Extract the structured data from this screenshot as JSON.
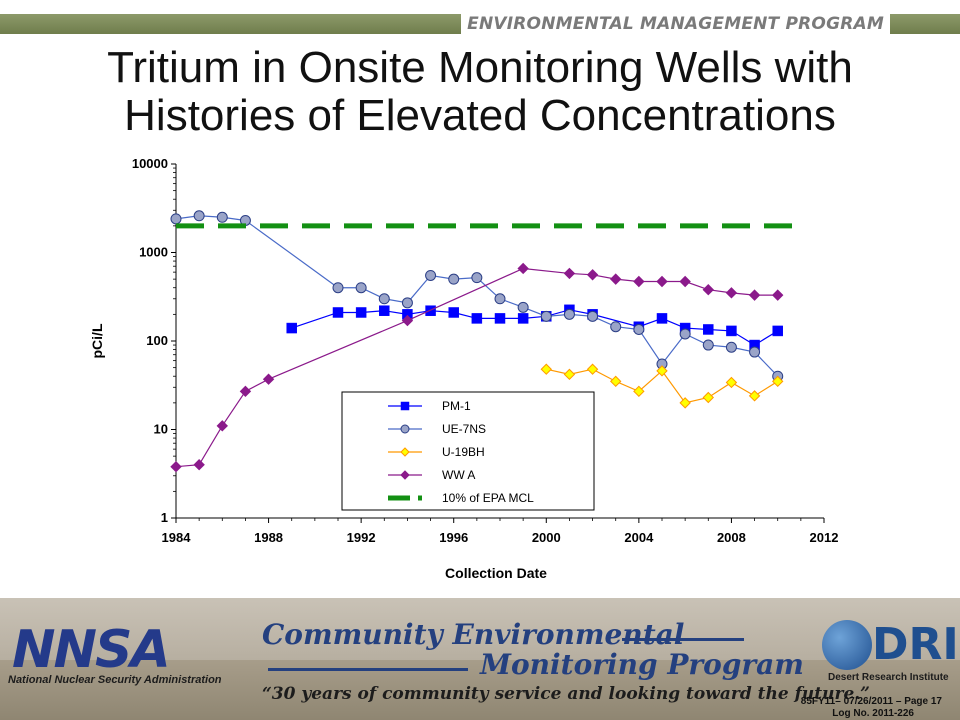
{
  "header": {
    "program": "ENVIRONMENTAL MANAGEMENT PROGRAM",
    "title_line1": "Tritium in Onsite Monitoring Wells with",
    "title_line2": "Histories of Elevated Concentrations"
  },
  "chart_data": {
    "type": "line",
    "xlabel": "Collection Date",
    "ylabel": "pCi/L",
    "y_scale": "log",
    "xlim": [
      1984,
      2012
    ],
    "ylim": [
      1,
      10000
    ],
    "x_ticks": [
      "1984",
      "1988",
      "1992",
      "1996",
      "2000",
      "2004",
      "2008",
      "2012"
    ],
    "y_ticks": [
      "1",
      "10",
      "100",
      "1000",
      "10000"
    ],
    "grid": false,
    "legend_position": "bottom-center",
    "series": [
      {
        "name": "PM-1",
        "color": "#0000ff",
        "marker": "square",
        "x": [
          1989,
          1991,
          1992,
          1993,
          1994,
          1995,
          1996,
          1997,
          1998,
          1999,
          2000,
          2001,
          2002,
          2004,
          2005,
          2006,
          2007,
          2008,
          2009,
          2010
        ],
        "y": [
          140,
          210,
          210,
          220,
          200,
          220,
          210,
          180,
          180,
          180,
          190,
          225,
          200,
          145,
          180,
          140,
          135,
          130,
          90,
          130
        ]
      },
      {
        "name": "UE-7NS",
        "color": "#4a6bc8",
        "marker": "circle",
        "x": [
          1984,
          1985,
          1986,
          1987,
          1991,
          1992,
          1993,
          1994,
          1995,
          1996,
          1997,
          1998,
          1999,
          2000,
          2001,
          2002,
          2003,
          2004,
          2005,
          2006,
          2007,
          2008,
          2009,
          2010
        ],
        "y": [
          2400,
          2600,
          2500,
          2300,
          400,
          400,
          300,
          270,
          550,
          500,
          520,
          300,
          240,
          190,
          200,
          190,
          145,
          135,
          55,
          120,
          90,
          85,
          75,
          40
        ]
      },
      {
        "name": "U-19BH",
        "color": "#ff9900",
        "marker": "diamond",
        "x": [
          2000,
          2001,
          2002,
          2003,
          2004,
          2005,
          2006,
          2007,
          2008,
          2009,
          2010
        ],
        "y": [
          48,
          42,
          48,
          35,
          27,
          46,
          20,
          23,
          34,
          24,
          35
        ]
      },
      {
        "name": "WW A",
        "color": "#8b1a8b",
        "marker": "diamond",
        "x": [
          1984,
          1985,
          1986,
          1987,
          1988,
          1994,
          1999,
          2001,
          2002,
          2003,
          2004,
          2005,
          2006,
          2007,
          2008,
          2009,
          2010
        ],
        "y": [
          3.8,
          4,
          11,
          27,
          37,
          170,
          660,
          580,
          560,
          500,
          470,
          470,
          470,
          380,
          350,
          330,
          330
        ]
      },
      {
        "name": "10% of EPA MCL",
        "color": "#139013",
        "marker": "none",
        "dashed": true,
        "x": [
          1984,
          2011
        ],
        "y": [
          2000,
          2000
        ]
      }
    ]
  },
  "footer": {
    "nnsa_logo": "NNSA",
    "nnsa_name": "National Nuclear Security Administration",
    "program_line1": "Community Environmental",
    "program_line2": "Monitoring Program",
    "tagline": "“30 years of community service and looking toward the future.”",
    "dri_logo": "DRI",
    "dri_name": "Desert Research Institute",
    "ref_line1": "85FY11– 07/26/2011 – Page 17",
    "ref_line2": "Log No. 2011-226"
  }
}
